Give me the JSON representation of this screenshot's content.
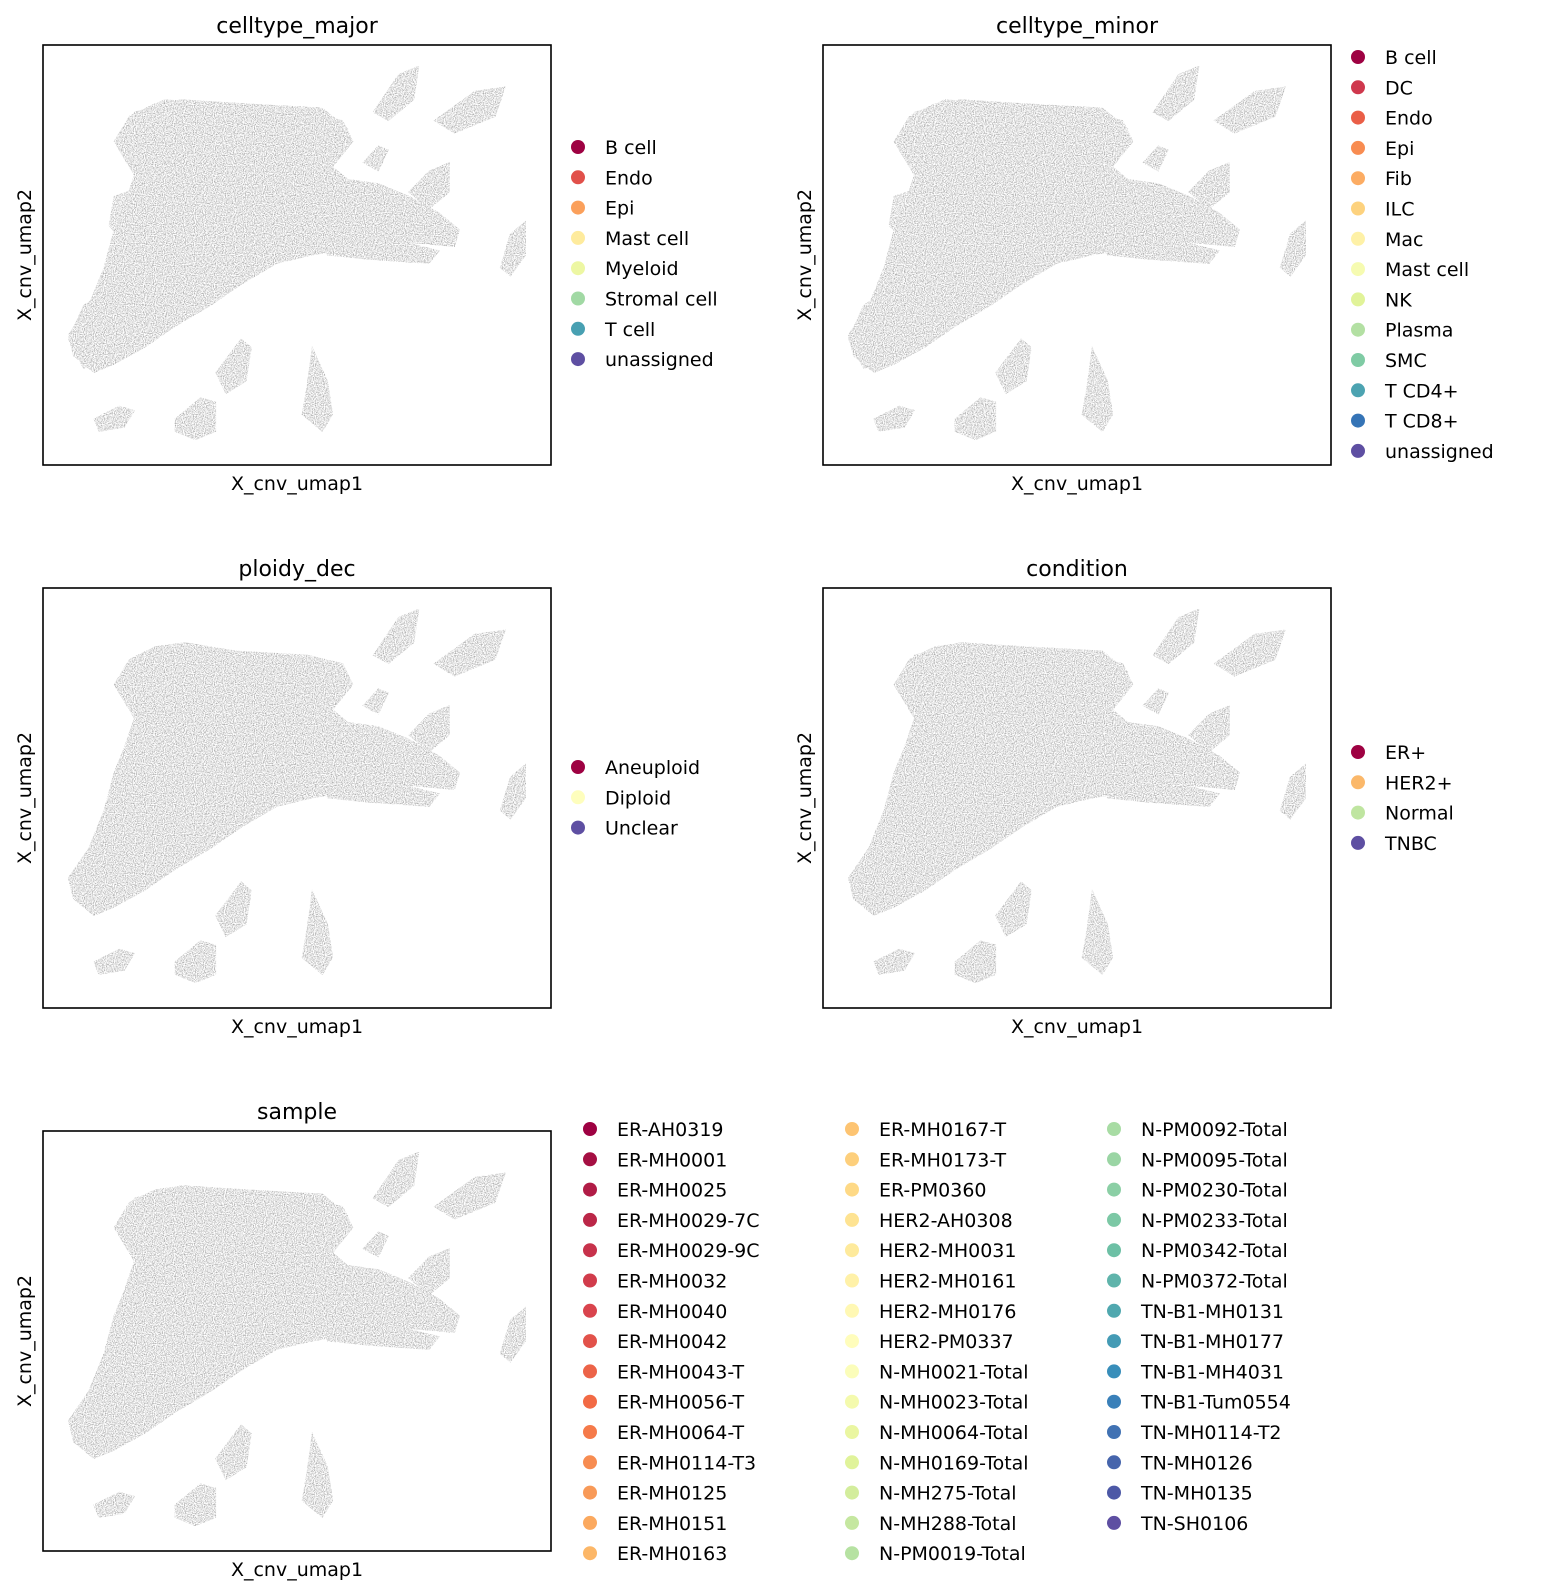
{
  "chart_data": [
    {
      "type": "scatter",
      "title": "celltype_major",
      "xlabel": "X_cnv_umap1",
      "ylabel": "X_cnv_umap2",
      "grid": false,
      "legend_position": "right",
      "categories": [
        {
          "name": "B cell",
          "color": "#9e0142"
        },
        {
          "name": "Endo",
          "color": "#e1504a"
        },
        {
          "name": "Epi",
          "color": "#fba05b"
        },
        {
          "name": "Mast cell",
          "color": "#feeb9d"
        },
        {
          "name": "Myeloid",
          "color": "#edf7a3"
        },
        {
          "name": "Stromal cell",
          "color": "#a1d9a4"
        },
        {
          "name": "T cell",
          "color": "#48a0b2"
        },
        {
          "name": "unassigned",
          "color": "#5e4fa2"
        }
      ]
    },
    {
      "type": "scatter",
      "title": "celltype_minor",
      "xlabel": "X_cnv_umap1",
      "ylabel": "X_cnv_umap2",
      "grid": false,
      "legend_position": "right",
      "categories": [
        {
          "name": "B cell",
          "color": "#9e0142"
        },
        {
          "name": "DC",
          "color": "#cf384d"
        },
        {
          "name": "Endo",
          "color": "#ea5e47"
        },
        {
          "name": "Epi",
          "color": "#f88c51"
        },
        {
          "name": "Fib",
          "color": "#fcac63"
        },
        {
          "name": "ILC",
          "color": "#fdd27e"
        },
        {
          "name": "Mac",
          "color": "#fef1a7"
        },
        {
          "name": "Mast cell",
          "color": "#f6fbb1"
        },
        {
          "name": "NK",
          "color": "#e1f399"
        },
        {
          "name": "Plasma",
          "color": "#b3e0a3"
        },
        {
          "name": "SMC",
          "color": "#7fcba4"
        },
        {
          "name": "T CD4+",
          "color": "#4ca3b1"
        },
        {
          "name": "T CD8+",
          "color": "#3574b6"
        },
        {
          "name": "unassigned",
          "color": "#5e4fa2"
        }
      ]
    },
    {
      "type": "scatter",
      "title": "ploidy_dec",
      "xlabel": "X_cnv_umap1",
      "ylabel": "X_cnv_umap2",
      "grid": false,
      "legend_position": "right",
      "categories": [
        {
          "name": "Aneuploid",
          "color": "#9e0142"
        },
        {
          "name": "Diploid",
          "color": "#fefebd"
        },
        {
          "name": "Unclear",
          "color": "#5e4fa2"
        }
      ]
    },
    {
      "type": "scatter",
      "title": "condition",
      "xlabel": "X_cnv_umap1",
      "ylabel": "X_cnv_umap2",
      "grid": false,
      "legend_position": "right",
      "categories": [
        {
          "name": "ER+",
          "color": "#9e0142"
        },
        {
          "name": "HER2+",
          "color": "#fbb86a"
        },
        {
          "name": "Normal",
          "color": "#bfe5a0"
        },
        {
          "name": "TNBC",
          "color": "#5e4fa2"
        }
      ]
    },
    {
      "type": "scatter",
      "title": "sample",
      "xlabel": "X_cnv_umap1",
      "ylabel": "X_cnv_umap2",
      "grid": false,
      "legend_position": "right",
      "categories": [
        {
          "name": "ER-AH0319",
          "color": "#9e0142"
        },
        {
          "name": "ER-MH0001",
          "color": "#a50f43"
        },
        {
          "name": "ER-MH0025",
          "color": "#b11c46"
        },
        {
          "name": "ER-MH0029-7C",
          "color": "#bb2748"
        },
        {
          "name": "ER-MH0029-9C",
          "color": "#c7324b"
        },
        {
          "name": "ER-MH0032",
          "color": "#d13c4b"
        },
        {
          "name": "ER-MH0040",
          "color": "#d9444d"
        },
        {
          "name": "ER-MH0042",
          "color": "#e2524a"
        },
        {
          "name": "ER-MH0043-T",
          "color": "#ec6348"
        },
        {
          "name": "ER-MH0056-T",
          "color": "#f26a45"
        },
        {
          "name": "ER-MH0064-T",
          "color": "#f57a4a"
        },
        {
          "name": "ER-MH0114-T3",
          "color": "#f78c51"
        },
        {
          "name": "ER-MH0125",
          "color": "#f89a58"
        },
        {
          "name": "ER-MH0151",
          "color": "#fba95f"
        },
        {
          "name": "ER-MH0163",
          "color": "#fcb768"
        },
        {
          "name": "ER-MH0167-T",
          "color": "#fdc472"
        },
        {
          "name": "ER-MH0173-T",
          "color": "#fdcf7c"
        },
        {
          "name": "ER-PM0360",
          "color": "#fed986"
        },
        {
          "name": "HER2-AH0308",
          "color": "#fee392"
        },
        {
          "name": "HER2-MH0031",
          "color": "#feea9c"
        },
        {
          "name": "HER2-MH0161",
          "color": "#fff1a8"
        },
        {
          "name": "HER2-MH0176",
          "color": "#fff8b4"
        },
        {
          "name": "HER2-PM0337",
          "color": "#fffdbc"
        },
        {
          "name": "N-MH0021-Total",
          "color": "#fbfdba"
        },
        {
          "name": "N-MH0023-Total",
          "color": "#f4faad"
        },
        {
          "name": "N-MH0064-Total",
          "color": "#eaf6a1"
        },
        {
          "name": "N-MH0169-Total",
          "color": "#e0f39a"
        },
        {
          "name": "N-MH275-Total",
          "color": "#d3ed9c"
        },
        {
          "name": "N-MH288-Total",
          "color": "#c5e7a0"
        },
        {
          "name": "N-PM0019-Total",
          "color": "#b6e2a2"
        },
        {
          "name": "N-PM0092-Total",
          "color": "#a8dca4"
        },
        {
          "name": "N-PM0095-Total",
          "color": "#9ad5a4"
        },
        {
          "name": "N-PM0230-Total",
          "color": "#8bcfa5"
        },
        {
          "name": "N-PM0233-Total",
          "color": "#7cc8a5"
        },
        {
          "name": "N-PM0342-Total",
          "color": "#6dc0a5"
        },
        {
          "name": "N-PM0372-Total",
          "color": "#5fb4ab"
        },
        {
          "name": "TN-B1-MH0131",
          "color": "#50a8af"
        },
        {
          "name": "TN-B1-MH0177",
          "color": "#449bb5"
        },
        {
          "name": "TN-B1-MH4031",
          "color": "#388eba"
        },
        {
          "name": "TN-B1-Tum0554",
          "color": "#3a80b9"
        },
        {
          "name": "TN-MH0114-T2",
          "color": "#4172b3"
        },
        {
          "name": "TN-MH0126",
          "color": "#4665ac"
        },
        {
          "name": "TN-MH0135",
          "color": "#4c58a6"
        },
        {
          "name": "TN-SH0106",
          "color": "#5e4fa2"
        }
      ]
    }
  ]
}
